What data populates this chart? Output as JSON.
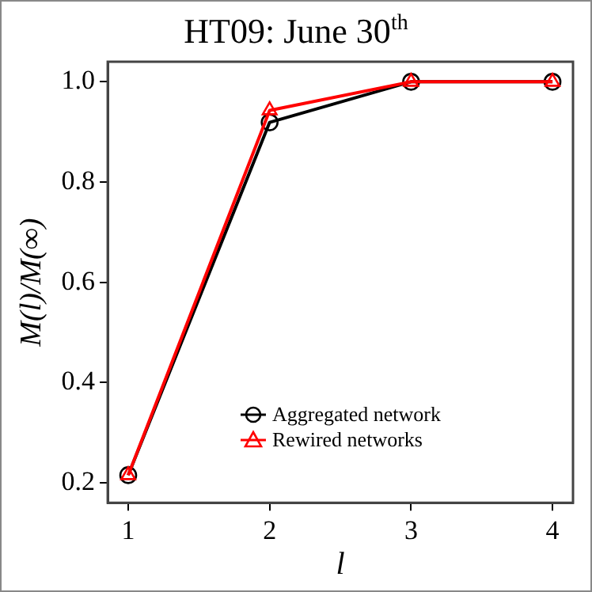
{
  "chart_data": {
    "type": "line",
    "title": "HT09: June 30$^{th}$",
    "xlabel": "l",
    "ylabel": "M(l)/M(∞)",
    "x": [
      1,
      2,
      3,
      4
    ],
    "series": [
      {
        "name": "Aggregated network",
        "color": "#000000",
        "marker": "circle",
        "values": [
          0.215,
          0.919,
          1.0,
          1.0
        ]
      },
      {
        "name": "Rewired networks",
        "color": "#ff0000",
        "marker": "triangle",
        "values": [
          0.215,
          0.943,
          1.0,
          1.0
        ]
      }
    ],
    "xlim": [
      0.855,
      4.145
    ],
    "xticks": [
      1,
      2,
      3,
      4
    ],
    "ylim": [
      0.16,
      1.04
    ],
    "yticks": [
      {
        "value": 0.2,
        "label": "0.2"
      },
      {
        "value": 0.4,
        "label": "0.4"
      },
      {
        "value": 0.6,
        "label": "0.6"
      },
      {
        "value": 0.8,
        "label": "0.8"
      },
      {
        "value": 1.0,
        "label": "1.0"
      }
    ],
    "grid": false,
    "legend": "bottom",
    "line_style": "solid"
  }
}
